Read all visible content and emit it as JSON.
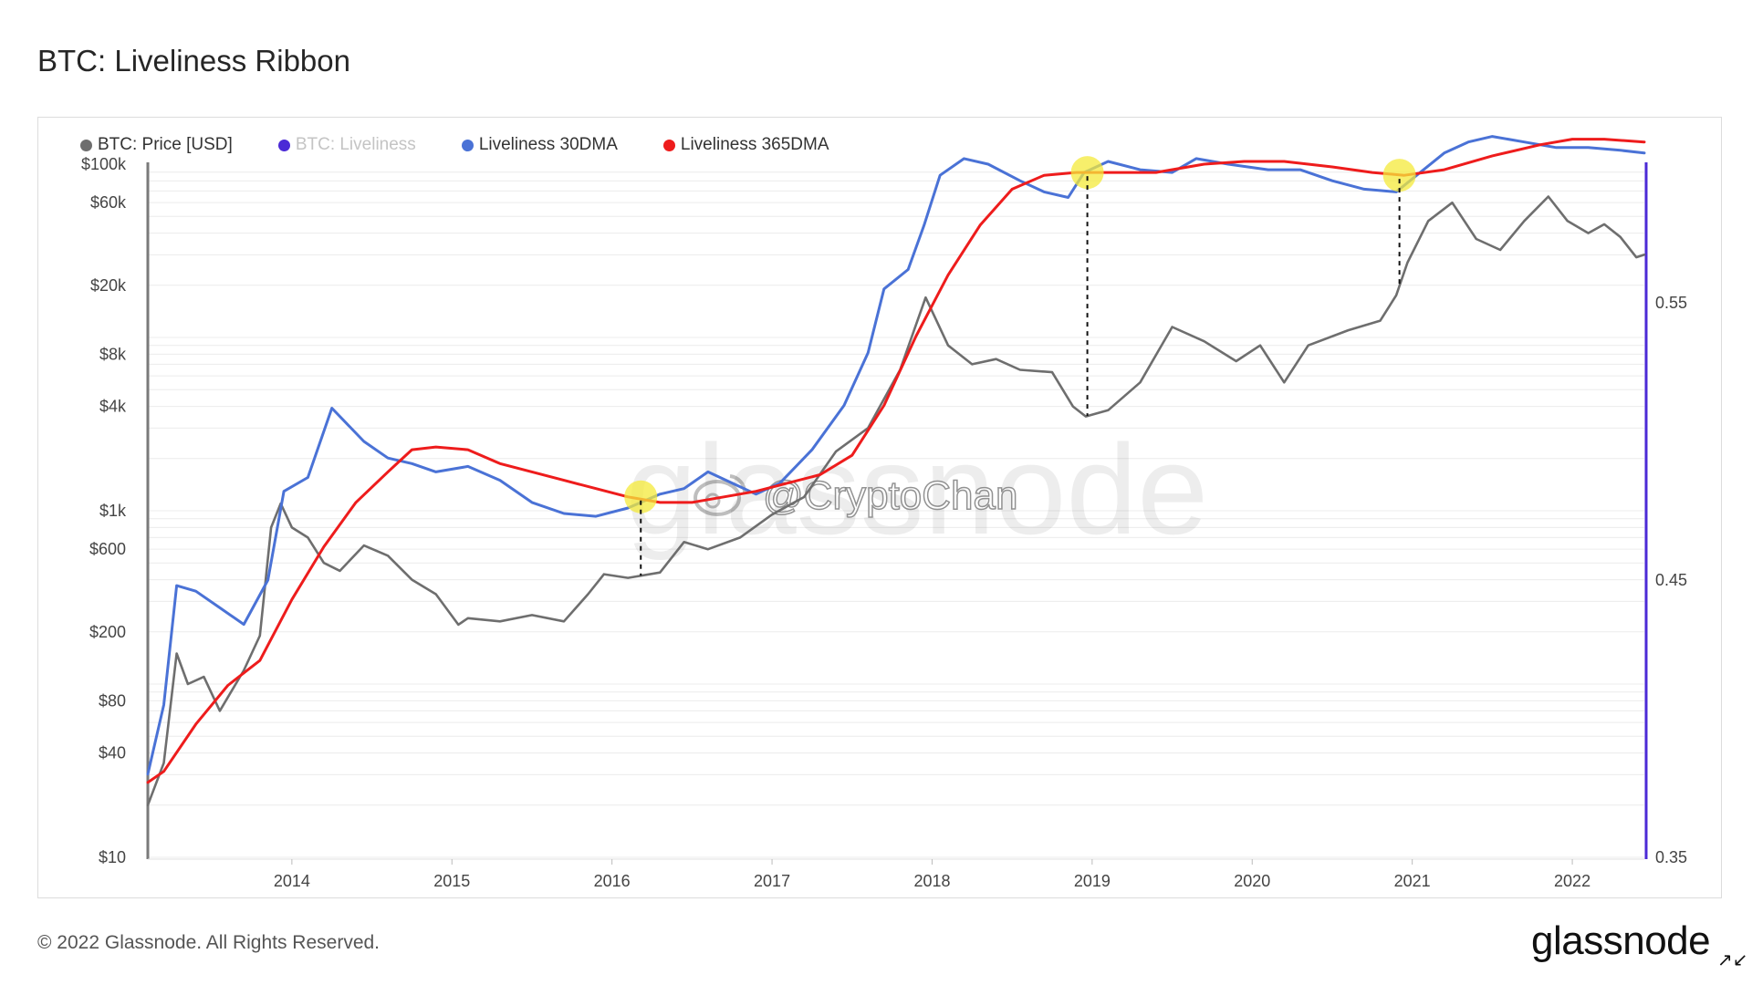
{
  "header": {
    "title": "BTC: Liveliness Ribbon"
  },
  "legend": [
    {
      "label": "BTC: Price [USD]",
      "color": "#6e6e6e",
      "muted": false
    },
    {
      "label": "BTC: Liveliness",
      "color": "#4b2ad6",
      "muted": true
    },
    {
      "label": "Liveliness 30DMA",
      "color": "#4a72d6",
      "muted": false
    },
    {
      "label": "Liveliness 365DMA",
      "color": "#ee1c1c",
      "muted": false
    }
  ],
  "watermark": {
    "text": "glassnode",
    "handle": "@CryptoChan"
  },
  "footer": {
    "copyright": "© 2022 Glassnode. All Rights Reserved.",
    "logo": "glassnode",
    "expand_icon": "expand-arrows-icon"
  },
  "chart_data": {
    "type": "line",
    "x_ticks": [
      "2014",
      "2015",
      "2016",
      "2017",
      "2018",
      "2019",
      "2020",
      "2021",
      "2022"
    ],
    "x_range": [
      2013.1,
      2022.45
    ],
    "y_left": {
      "scale": "log",
      "ticks": [
        "$100k",
        "$60k",
        "$20k",
        "$8k",
        "$4k",
        "$1k",
        "$600",
        "$200",
        "$80",
        "$40",
        "$10"
      ],
      "range": [
        10,
        100000
      ]
    },
    "y_right": {
      "ticks": [
        "0.55",
        "0.45",
        "0.35"
      ],
      "range": [
        0.35,
        0.6
      ]
    },
    "series": [
      {
        "name": "BTC: Price [USD]",
        "axis": "left",
        "color": "#6e6e6e",
        "points": [
          [
            2013.1,
            20
          ],
          [
            2013.2,
            35
          ],
          [
            2013.28,
            150
          ],
          [
            2013.35,
            100
          ],
          [
            2013.45,
            110
          ],
          [
            2013.55,
            70
          ],
          [
            2013.7,
            120
          ],
          [
            2013.8,
            190
          ],
          [
            2013.87,
            800
          ],
          [
            2013.93,
            1100
          ],
          [
            2014.0,
            800
          ],
          [
            2014.1,
            700
          ],
          [
            2014.2,
            500
          ],
          [
            2014.3,
            450
          ],
          [
            2014.45,
            630
          ],
          [
            2014.6,
            550
          ],
          [
            2014.75,
            400
          ],
          [
            2014.9,
            330
          ],
          [
            2015.04,
            220
          ],
          [
            2015.1,
            240
          ],
          [
            2015.3,
            230
          ],
          [
            2015.5,
            250
          ],
          [
            2015.7,
            230
          ],
          [
            2015.85,
            330
          ],
          [
            2015.95,
            430
          ],
          [
            2016.1,
            410
          ],
          [
            2016.3,
            440
          ],
          [
            2016.45,
            660
          ],
          [
            2016.6,
            600
          ],
          [
            2016.8,
            700
          ],
          [
            2017.0,
            950
          ],
          [
            2017.2,
            1200
          ],
          [
            2017.4,
            2200
          ],
          [
            2017.6,
            3000
          ],
          [
            2017.8,
            6500
          ],
          [
            2017.96,
            17000
          ],
          [
            2018.1,
            9000
          ],
          [
            2018.25,
            7000
          ],
          [
            2018.4,
            7500
          ],
          [
            2018.55,
            6500
          ],
          [
            2018.75,
            6300
          ],
          [
            2018.88,
            4000
          ],
          [
            2018.96,
            3500
          ],
          [
            2019.1,
            3800
          ],
          [
            2019.3,
            5500
          ],
          [
            2019.5,
            11500
          ],
          [
            2019.7,
            9500
          ],
          [
            2019.9,
            7300
          ],
          [
            2020.05,
            9000
          ],
          [
            2020.2,
            5500
          ],
          [
            2020.35,
            9000
          ],
          [
            2020.6,
            11000
          ],
          [
            2020.8,
            12500
          ],
          [
            2020.9,
            17500
          ],
          [
            2020.97,
            27000
          ],
          [
            2021.1,
            47000
          ],
          [
            2021.25,
            60000
          ],
          [
            2021.4,
            37000
          ],
          [
            2021.55,
            32000
          ],
          [
            2021.7,
            47000
          ],
          [
            2021.85,
            65000
          ],
          [
            2021.97,
            47000
          ],
          [
            2022.1,
            40000
          ],
          [
            2022.2,
            45000
          ],
          [
            2022.3,
            38000
          ],
          [
            2022.4,
            29000
          ],
          [
            2022.45,
            30000
          ]
        ]
      },
      {
        "name": "Liveliness 30DMA",
        "axis": "right",
        "color": "#4a72d6",
        "points": [
          [
            2013.1,
            0.38
          ],
          [
            2013.2,
            0.405
          ],
          [
            2013.28,
            0.448
          ],
          [
            2013.4,
            0.446
          ],
          [
            2013.55,
            0.44
          ],
          [
            2013.7,
            0.434
          ],
          [
            2013.85,
            0.45
          ],
          [
            2013.95,
            0.482
          ],
          [
            2014.1,
            0.487
          ],
          [
            2014.25,
            0.512
          ],
          [
            2014.45,
            0.5
          ],
          [
            2014.6,
            0.494
          ],
          [
            2014.75,
            0.492
          ],
          [
            2014.9,
            0.489
          ],
          [
            2015.1,
            0.491
          ],
          [
            2015.3,
            0.486
          ],
          [
            2015.5,
            0.478
          ],
          [
            2015.7,
            0.474
          ],
          [
            2015.9,
            0.473
          ],
          [
            2016.1,
            0.476
          ],
          [
            2016.3,
            0.481
          ],
          [
            2016.45,
            0.483
          ],
          [
            2016.6,
            0.489
          ],
          [
            2016.75,
            0.485
          ],
          [
            2016.9,
            0.481
          ],
          [
            2017.05,
            0.485
          ],
          [
            2017.25,
            0.497
          ],
          [
            2017.45,
            0.513
          ],
          [
            2017.6,
            0.532
          ],
          [
            2017.7,
            0.555
          ],
          [
            2017.85,
            0.562
          ],
          [
            2017.95,
            0.578
          ],
          [
            2018.05,
            0.596
          ],
          [
            2018.2,
            0.602
          ],
          [
            2018.35,
            0.6
          ],
          [
            2018.55,
            0.594
          ],
          [
            2018.7,
            0.59
          ],
          [
            2018.85,
            0.588
          ],
          [
            2018.95,
            0.597
          ],
          [
            2019.1,
            0.601
          ],
          [
            2019.3,
            0.598
          ],
          [
            2019.5,
            0.597
          ],
          [
            2019.65,
            0.602
          ],
          [
            2019.85,
            0.6
          ],
          [
            2020.1,
            0.598
          ],
          [
            2020.3,
            0.598
          ],
          [
            2020.5,
            0.594
          ],
          [
            2020.7,
            0.591
          ],
          [
            2020.9,
            0.59
          ],
          [
            2021.05,
            0.597
          ],
          [
            2021.2,
            0.604
          ],
          [
            2021.35,
            0.608
          ],
          [
            2021.5,
            0.61
          ],
          [
            2021.7,
            0.608
          ],
          [
            2021.9,
            0.606
          ],
          [
            2022.1,
            0.606
          ],
          [
            2022.3,
            0.605
          ],
          [
            2022.45,
            0.604
          ]
        ]
      },
      {
        "name": "Liveliness 365DMA",
        "axis": "right",
        "color": "#ee1c1c",
        "points": [
          [
            2013.1,
            0.377
          ],
          [
            2013.2,
            0.381
          ],
          [
            2013.4,
            0.398
          ],
          [
            2013.6,
            0.412
          ],
          [
            2013.8,
            0.421
          ],
          [
            2014.0,
            0.443
          ],
          [
            2014.2,
            0.462
          ],
          [
            2014.4,
            0.478
          ],
          [
            2014.6,
            0.489
          ],
          [
            2014.75,
            0.497
          ],
          [
            2014.9,
            0.498
          ],
          [
            2015.1,
            0.497
          ],
          [
            2015.3,
            0.492
          ],
          [
            2015.5,
            0.489
          ],
          [
            2015.7,
            0.486
          ],
          [
            2015.9,
            0.483
          ],
          [
            2016.1,
            0.48
          ],
          [
            2016.3,
            0.478
          ],
          [
            2016.5,
            0.478
          ],
          [
            2016.7,
            0.48
          ],
          [
            2016.9,
            0.482
          ],
          [
            2017.1,
            0.485
          ],
          [
            2017.3,
            0.488
          ],
          [
            2017.5,
            0.495
          ],
          [
            2017.7,
            0.513
          ],
          [
            2017.9,
            0.538
          ],
          [
            2018.1,
            0.56
          ],
          [
            2018.3,
            0.578
          ],
          [
            2018.5,
            0.591
          ],
          [
            2018.7,
            0.596
          ],
          [
            2018.9,
            0.597
          ],
          [
            2019.1,
            0.597
          ],
          [
            2019.4,
            0.597
          ],
          [
            2019.7,
            0.6
          ],
          [
            2019.95,
            0.601
          ],
          [
            2020.2,
            0.601
          ],
          [
            2020.5,
            0.599
          ],
          [
            2020.75,
            0.597
          ],
          [
            2020.95,
            0.596
          ],
          [
            2021.2,
            0.598
          ],
          [
            2021.5,
            0.603
          ],
          [
            2021.8,
            0.607
          ],
          [
            2022.0,
            0.609
          ],
          [
            2022.2,
            0.609
          ],
          [
            2022.45,
            0.608
          ]
        ]
      }
    ],
    "highlights": [
      {
        "date": 2016.18,
        "value": 0.48
      },
      {
        "date": 2018.97,
        "value": 0.597
      },
      {
        "date": 2020.92,
        "value": 0.596
      }
    ],
    "grid": true,
    "legend_position": "top-left"
  }
}
